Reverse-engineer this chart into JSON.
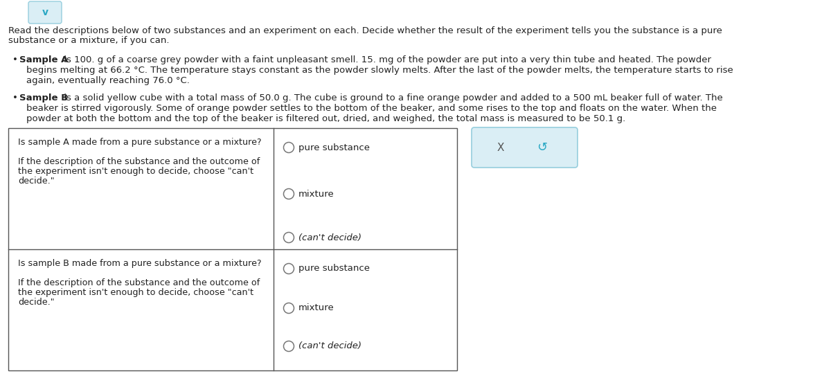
{
  "bg_color": "#ffffff",
  "text_color": "#222222",
  "header_line1": "Read the descriptions below of two substances and an experiment on each. Decide whether the result of the experiment tells you the substance is a pure",
  "header_line2": "substance or a mixture, if you can.",
  "sample_a_line1_pre": " is 100. g of a coarse grey powder with a faint unpleasant smell. 15. mg of the powder are put into a very thin tube and heated. The powder",
  "sample_a_line2": "begins melting at 66.2 °C. The temperature stays constant as the powder slowly melts. After the last of the powder melts, the temperature starts to rise",
  "sample_a_line3": "again, eventually reaching 76.0 °C.",
  "sample_b_line1_pre": " is a solid yellow cube with a total mass of 50.0 g. The cube is ground to a fine orange powder and added to a 500 mL beaker full of water. The",
  "sample_b_line2": "beaker is stirred vigorously. Some of orange powder settles to the bottom of the beaker, and some rises to the top and floats on the water. When the",
  "sample_b_line3": "powder at both the bottom and the top of the beaker is filtered out, dried, and weighed, the total mass is measured to be 50.1 g.",
  "table_q_a": "Is sample A made from a pure substance or a mixture?",
  "table_q_b": "Is sample B made from a pure substance or a mixture?",
  "table_sub1": "If the description of the substance and the outcome of",
  "table_sub2": "the experiment isn't enough to decide, choose \"can't",
  "table_sub3": "decide.\"",
  "radio_options": [
    "pure substance",
    "mixture",
    "(can't decide)"
  ],
  "table_border_color": "#555555",
  "radio_color": "#777777",
  "button_bg": "#daeef5",
  "button_border": "#96cedd",
  "chevron_color": "#2aa8c4",
  "x_color": "#555555",
  "undo_color": "#2aa8c4",
  "fs_header": 9.5,
  "fs_body": 9.5,
  "fs_table": 9.2,
  "fs_radio": 9.5,
  "fs_btn": 11
}
